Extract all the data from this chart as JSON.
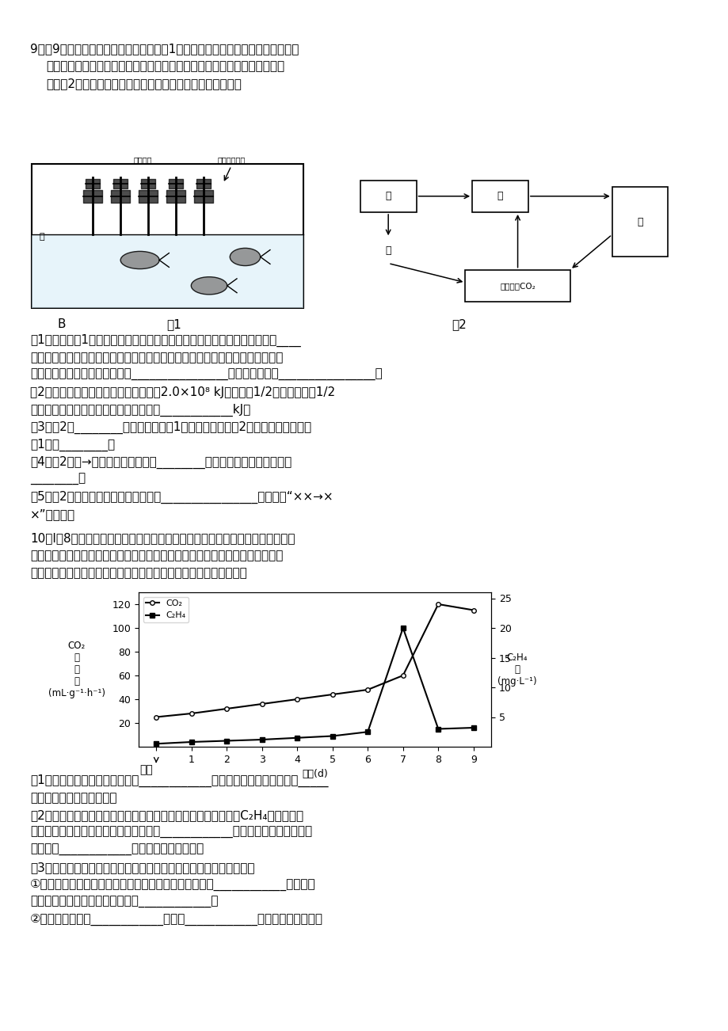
{
  "background_color": "#ffffff",
  "page_width": 9.2,
  "page_height": 13.02,
  "q9_line0": "9．（9分）某研究性学习小组设计了如图1所示的生态系统。水体中有藻类植物、",
  "q9_line1": "水蚤、鲤鱼、腐生细菌等。水蚤以藻类植物为食，鲤鱼以水蚤和藻类植物为",
  "q9_line2": "食。图2为该生态系统的碳循环部分过程示意图。据图分析：",
  "fig_B": "B",
  "fig_1": "图1",
  "fig_2": "图2",
  "q9_1a": "（1）要维持图1所示生态系统的正常运行，一定要将装置放在适宜温度和有____",
  "q9_1b": "的地方。某种因素使得生产者短时间内大量减少，但一段时间后又恢复到原有水",
  "q9_1c": "平，说明该生态系统具有一定的________________能力，其基础是________________。",
  "q9_2": "（2）若藻类植物所固定的太阳能总量为2.0×10⁸ kJ，藻类中1/2被水蚤捕食、1/2",
  "q9_2b": "被鲤鱼捕食，则鲤鱼所获得的能量最少为____________kJ。",
  "q9_3a": "（3）图2中________对应的生物是图1中的藻类植物，图2中的丙对应的生物是",
  "q9_3b": "图1中的________。",
  "q9_4a": "（4）图2的甲→丁中碳的流动形式是________，乙和丙之间的关系分别为",
  "q9_4b": "________。",
  "q9_5a": "（5）图2中漏画了一个筭头，该筭头是________________（用格式“××→×",
  "q9_5b": "×”表示）。",
  "q10_0": "10．Ⅰ（8分）香蕉是一种热带水果，成熟的果实不易保鲜、不耗贮藏。因此香蕉",
  "q10_1": "一般在未成熟时采摘，此时果皮青绳、果肉硬实、甜度小。随放置时间的延长，",
  "q10_2": "淠粉逐渐转变成还原糖，果肉逐渐变软、甜度增加，果实逐渐成熟。",
  "co2_x": [
    0,
    1,
    2,
    3,
    4,
    5,
    6,
    7,
    8,
    9
  ],
  "co2_y": [
    25,
    28,
    32,
    36,
    40,
    44,
    48,
    60,
    120,
    115
  ],
  "c2h4_x": [
    0,
    1,
    2,
    3,
    4,
    5,
    6,
    7,
    8,
    9
  ],
  "c2h4_y": [
    0.5,
    0.8,
    1.0,
    1.2,
    1.5,
    1.8,
    2.5,
    20,
    3.0,
    3.2
  ],
  "q10s_1a": "（1）检测香蕉中的还原性糖可用____________试剂，观察此实验结果中的_____",
  "q10s_1b": "可以推测香蕉的成熟程度。",
  "q10s_2a": "（2）如图是采摘后的香蕉在果实成熟过程中，呼吸速率和乙烯（C₂H₄）含量的变",
  "q10s_2b": "化。采摘后的香蕉，其细胞呼吸速率在第____________天达到最大。据图推测，",
  "q10s_2c": "乙烯通过____________促进香蕉果实的成熟。",
  "q10s_3a": "（3）有人要验证上述推测，利用一种乙烯抑制剂设计了下面的实验：",
  "q10s_3b": "①将采摘后的香蕉均分为两组，实验组需要在采摘后的第____________天之前用",
  "q10s_3c": "乙烯抑制剂进行燗蒸处理，对照组____________。",
  "q10s_3d": "②检测两组香蕉的____________，如果____________，则支持上述推测。"
}
